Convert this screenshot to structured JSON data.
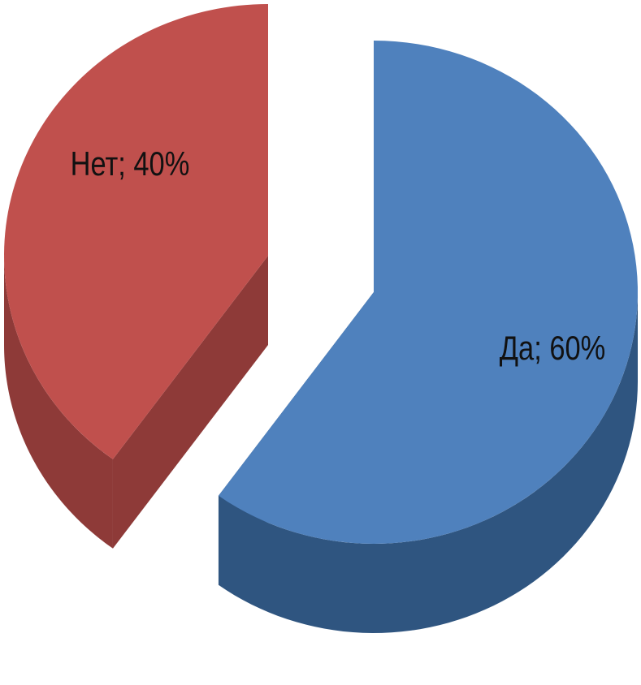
{
  "chart_data": {
    "type": "pie3d",
    "categories": [
      "Да",
      "Нет"
    ],
    "values": [
      60,
      40
    ],
    "value_labels": [
      "Да; 60%",
      "Нет; 40%"
    ],
    "colors": [
      "#4f81bd",
      "#c0504d"
    ],
    "side_colors": [
      "#2f5580",
      "#8e3a38"
    ]
  }
}
